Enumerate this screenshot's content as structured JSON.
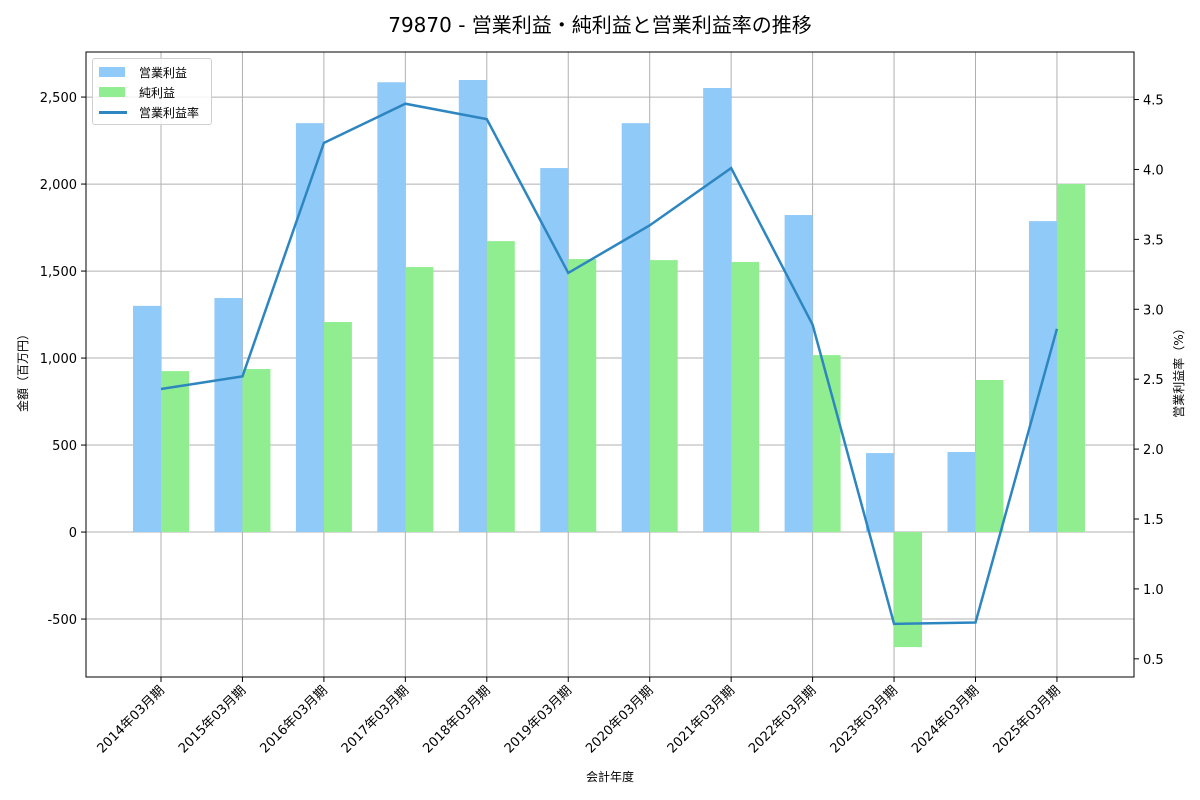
{
  "title": "79870 - 営業利益・純利益と営業利益率の推移",
  "colors": {
    "operating_profit": "#90caf9",
    "net_profit": "#90ee90",
    "operating_margin": "#2e86c1",
    "grid": "#b0b0b0",
    "axis": "#000000"
  },
  "legend": {
    "items": [
      {
        "label": "営業利益",
        "type": "bar",
        "color": "#90caf9"
      },
      {
        "label": "純利益",
        "type": "bar",
        "color": "#90ee90"
      },
      {
        "label": "営業利益率",
        "type": "line",
        "color": "#2e86c1"
      }
    ]
  },
  "axes": {
    "x_label": "会計年度",
    "y_left_label": "金額（百万円）",
    "y_right_label": "営業利益率（%）",
    "y_left_ticks": [
      "-500",
      "0",
      "500",
      "1,000",
      "1,500",
      "2,000",
      "2,500"
    ],
    "y_right_ticks": [
      "0.5",
      "1.0",
      "1.5",
      "2.0",
      "2.5",
      "3.0",
      "3.5",
      "4.0",
      "4.5"
    ]
  },
  "chart_data": {
    "type": "bar",
    "title": "79870 - 営業利益・純利益と営業利益率の推移",
    "xlabel": "会計年度",
    "ylabel": "金額（百万円）",
    "ylabel_right": "営業利益率（%）",
    "categories": [
      "2014年03月期",
      "2015年03月期",
      "2016年03月期",
      "2017年03月期",
      "2018年03月期",
      "2019年03月期",
      "2020年03月期",
      "2021年03月期",
      "2022年03月期",
      "2023年03月期",
      "2024年03月期",
      "2025年03月期"
    ],
    "series": [
      {
        "name": "営業利益",
        "type": "bar",
        "axis": "left",
        "color": "#90caf9",
        "values": [
          1300,
          1345,
          2350,
          2585,
          2598,
          2092,
          2350,
          2552,
          1822,
          454,
          460,
          1787
        ]
      },
      {
        "name": "純利益",
        "type": "bar",
        "axis": "left",
        "color": "#90ee90",
        "values": [
          925,
          937,
          1207,
          1523,
          1672,
          1569,
          1563,
          1552,
          1017,
          -661,
          874,
          2000
        ]
      },
      {
        "name": "営業利益率",
        "type": "line",
        "axis": "right",
        "color": "#2e86c1",
        "values": [
          2.43,
          2.52,
          4.19,
          4.47,
          4.36,
          3.26,
          3.6,
          4.01,
          2.89,
          0.75,
          0.76,
          2.86
        ]
      }
    ],
    "ylim": [
      -833,
      2759
    ],
    "ylim_right": [
      0.37,
      4.84
    ],
    "y_ticks": [
      -500,
      0,
      500,
      1000,
      1500,
      2000,
      2500
    ],
    "y_right_ticks": [
      0.5,
      1.0,
      1.5,
      2.0,
      2.5,
      3.0,
      3.5,
      4.0,
      4.5
    ],
    "grid": true,
    "legend_position": "upper left"
  }
}
